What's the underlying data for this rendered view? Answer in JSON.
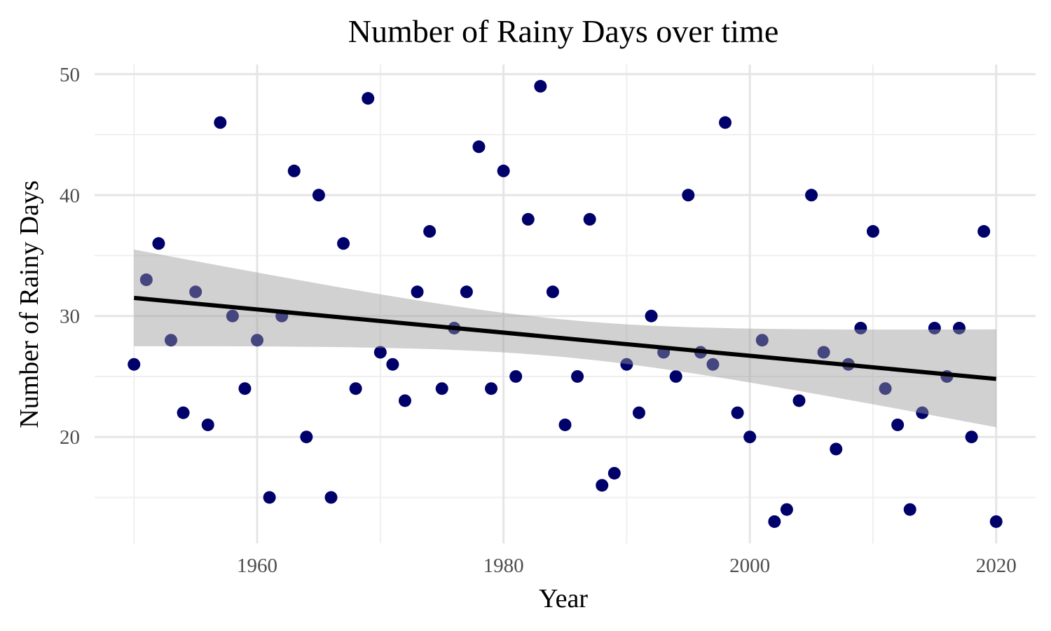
{
  "chart_data": {
    "type": "scatter",
    "title": "Number of Rainy Days over time",
    "xlabel": "Year",
    "ylabel": "Number of Rainy Days",
    "xlim": [
      1946.8,
      2023.2
    ],
    "ylim": [
      11.2,
      50.8
    ],
    "xticks": [
      1960,
      1980,
      2000,
      2020
    ],
    "yticks": [
      20,
      30,
      40,
      50
    ],
    "xticks_minor": [
      1950,
      1970,
      1990,
      2010
    ],
    "yticks_minor": [
      15,
      25,
      35,
      45
    ],
    "grid": true,
    "point_color": "#00006b",
    "trend_color": "#000000",
    "band_color": "#999999",
    "x": [
      1950,
      1951,
      1952,
      1953,
      1954,
      1955,
      1956,
      1957,
      1958,
      1959,
      1960,
      1961,
      1962,
      1963,
      1964,
      1965,
      1966,
      1967,
      1968,
      1969,
      1970,
      1971,
      1972,
      1973,
      1974,
      1975,
      1976,
      1977,
      1978,
      1979,
      1980,
      1981,
      1982,
      1983,
      1984,
      1985,
      1986,
      1987,
      1988,
      1989,
      1990,
      1991,
      1992,
      1993,
      1994,
      1995,
      1996,
      1997,
      1998,
      1999,
      2000,
      2001,
      2002,
      2003,
      2004,
      2005,
      2006,
      2007,
      2008,
      2009,
      2010,
      2011,
      2012,
      2013,
      2014,
      2015,
      2016,
      2017,
      2018,
      2019,
      2020
    ],
    "y": [
      26,
      33,
      36,
      28,
      22,
      32,
      21,
      46,
      30,
      24,
      28,
      15,
      30,
      42,
      20,
      40,
      15,
      36,
      24,
      48,
      27,
      26,
      23,
      32,
      37,
      24,
      29,
      32,
      44,
      24,
      42,
      25,
      38,
      49,
      32,
      21,
      25,
      38,
      16,
      17,
      26,
      22,
      30,
      27,
      25,
      40,
      27,
      26,
      46,
      22,
      20,
      28,
      13,
      14,
      23,
      40,
      27,
      19,
      26,
      29,
      37,
      24,
      21,
      14,
      22,
      29,
      25,
      29,
      20,
      37,
      13
    ],
    "trend": {
      "x": [
        1950,
        2020
      ],
      "y": [
        31.5,
        24.8
      ],
      "lower": [
        27.5,
        20.8
      ],
      "upper": [
        35.5,
        28.9
      ]
    }
  }
}
